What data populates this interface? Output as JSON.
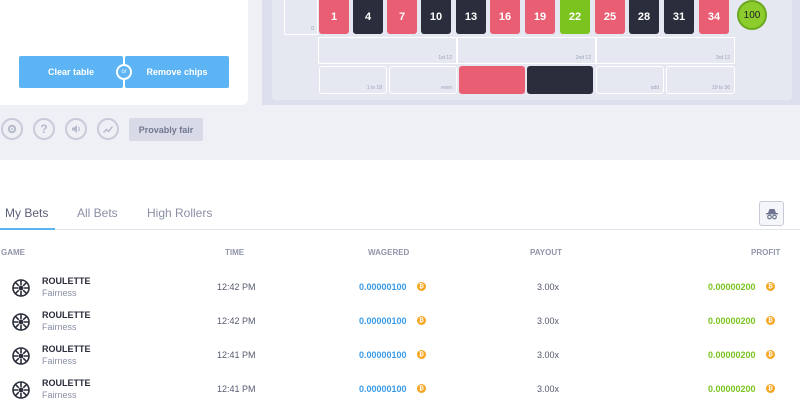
{
  "left_panel": {
    "clear_table_label": "Clear table",
    "or_label": "or",
    "remove_chips_label": "Remove chips"
  },
  "board": {
    "zero_label": "0",
    "numbers": [
      {
        "value": "1",
        "color": "red"
      },
      {
        "value": "4",
        "color": "black"
      },
      {
        "value": "7",
        "color": "red"
      },
      {
        "value": "10",
        "color": "black"
      },
      {
        "value": "13",
        "color": "black"
      },
      {
        "value": "16",
        "color": "red"
      },
      {
        "value": "19",
        "color": "red"
      },
      {
        "value": "22",
        "color": "green"
      },
      {
        "value": "25",
        "color": "red"
      },
      {
        "value": "28",
        "color": "black"
      },
      {
        "value": "31",
        "color": "black"
      },
      {
        "value": "34",
        "color": "red"
      }
    ],
    "column_bet": "100",
    "dozens": [
      "1st 12",
      "2nd 12",
      "3rd 12"
    ],
    "outside": [
      "1 to 18",
      "even",
      "",
      "",
      "odd",
      "19 to 36"
    ]
  },
  "toolbar": {
    "icons": [
      "gear-icon",
      "help-icon",
      "sound-icon",
      "stats-icon"
    ],
    "provably_fair_label": "Provably fair"
  },
  "tabs": [
    {
      "label": "My Bets",
      "active": true
    },
    {
      "label": "All Bets",
      "active": false
    },
    {
      "label": "High Rollers",
      "active": false
    }
  ],
  "table": {
    "headers": {
      "game": "GAME",
      "time": "TIME",
      "wagered": "WAGERED",
      "payout": "PAYOUT",
      "profit": "PROFIT"
    },
    "rows": [
      {
        "game": "ROULETTE",
        "sub": "Fairness",
        "time": "12:42 PM",
        "wagered": "0.00000100",
        "payout": "3.00x",
        "profit": "0.00000200"
      },
      {
        "game": "ROULETTE",
        "sub": "Fairness",
        "time": "12:42 PM",
        "wagered": "0.00000100",
        "payout": "3.00x",
        "profit": "0.00000200"
      },
      {
        "game": "ROULETTE",
        "sub": "Fairness",
        "time": "12:41 PM",
        "wagered": "0.00000100",
        "payout": "3.00x",
        "profit": "0.00000200"
      },
      {
        "game": "ROULETTE",
        "sub": "Fairness",
        "time": "12:41 PM",
        "wagered": "0.00000100",
        "payout": "3.00x",
        "profit": "0.00000200"
      }
    ]
  },
  "colors": {
    "accent": "#5cb4f5",
    "red": "#ea5e73",
    "black": "#2a2d3b",
    "green": "#7bc420",
    "coin": "#f5a623"
  }
}
